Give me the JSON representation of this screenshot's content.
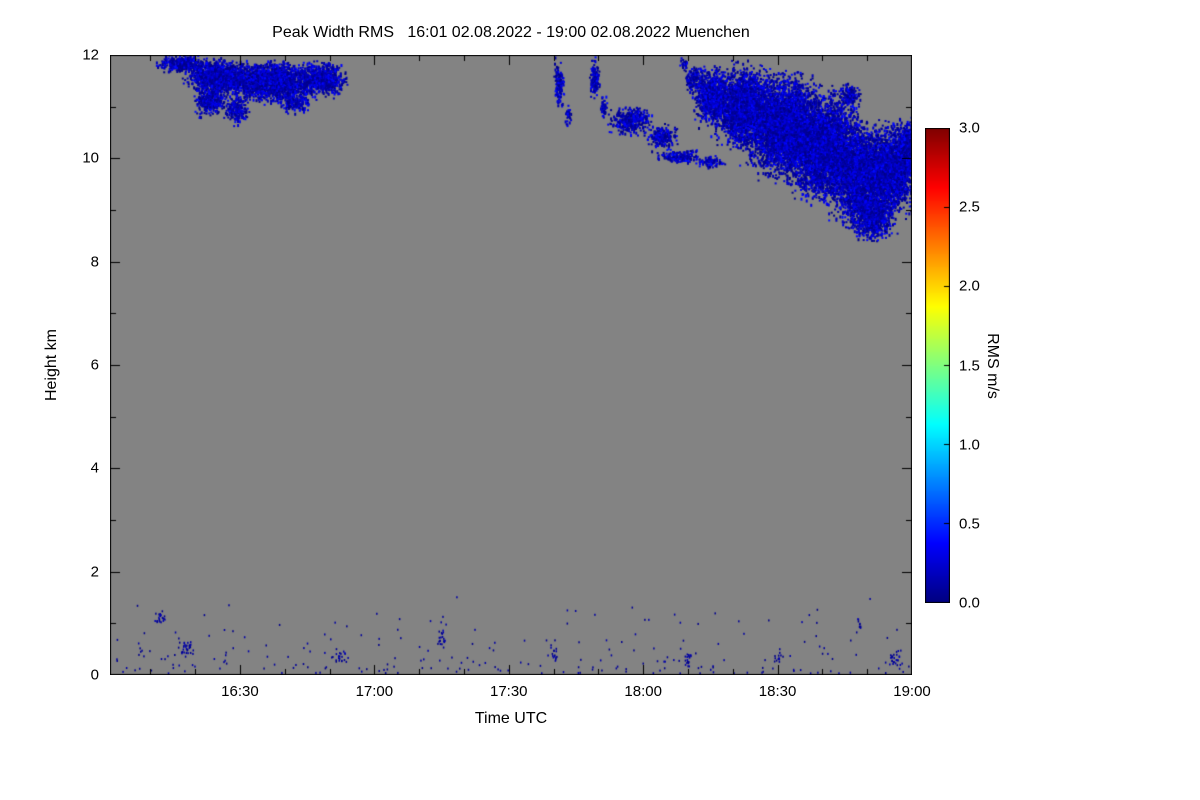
{
  "chart_data": {
    "type": "heatmap",
    "title": "Peak Width RMS   16:01 02.08.2022 - 19:00 02.08.2022 Muenchen",
    "xlabel": "Time UTC",
    "ylabel": "Height km",
    "x_range_minutes": [
      961,
      1140
    ],
    "x_ticks": [
      {
        "minute": 990,
        "label": "16:30"
      },
      {
        "minute": 1020,
        "label": "17:00"
      },
      {
        "minute": 1050,
        "label": "17:30"
      },
      {
        "minute": 1080,
        "label": "18:00"
      },
      {
        "minute": 1110,
        "label": "18:30"
      },
      {
        "minute": 1140,
        "label": "19:00"
      }
    ],
    "x_minor_ticks": [
      970,
      980,
      1000,
      1010,
      1030,
      1040,
      1060,
      1070,
      1090,
      1100,
      1120,
      1130
    ],
    "ylim": [
      0,
      12
    ],
    "y_ticks": [
      {
        "value": 0,
        "label": "0"
      },
      {
        "value": 2,
        "label": "2"
      },
      {
        "value": 4,
        "label": "4"
      },
      {
        "value": 6,
        "label": "6"
      },
      {
        "value": 8,
        "label": "8"
      },
      {
        "value": 10,
        "label": "10"
      },
      {
        "value": 12,
        "label": "12"
      }
    ],
    "y_minor_ticks": [
      1,
      3,
      5,
      7,
      9,
      11
    ],
    "background_color": "#838383",
    "value_range": [
      0.02,
      0.42
    ],
    "colorbar": {
      "label": "RMS m/s",
      "range": [
        0.0,
        3.0
      ],
      "colormap": "jet",
      "ticks": [
        {
          "value": 0.0,
          "label": "0.0"
        },
        {
          "value": 0.5,
          "label": "0.5"
        },
        {
          "value": 1.0,
          "label": "1.0"
        },
        {
          "value": 1.5,
          "label": "1.5"
        },
        {
          "value": 2.0,
          "label": "2.0"
        },
        {
          "value": 2.5,
          "label": "2.5"
        },
        {
          "value": 3.0,
          "label": "3.0"
        }
      ]
    },
    "clouds": [
      {
        "name": "cirrus-patch-left",
        "blobs": [
          {
            "t": 977,
            "h": 11.85,
            "rt": 6,
            "rh": 0.18,
            "d": 0.85
          },
          {
            "t": 985,
            "h": 11.6,
            "rt": 8,
            "rh": 0.38,
            "d": 0.9
          },
          {
            "t": 997,
            "h": 11.5,
            "rt": 11,
            "rh": 0.42,
            "d": 0.92
          },
          {
            "t": 1008,
            "h": 11.55,
            "rt": 6,
            "rh": 0.35,
            "d": 0.85
          },
          {
            "t": 983,
            "h": 11.15,
            "rt": 4,
            "rh": 0.35,
            "d": 0.6
          },
          {
            "t": 989,
            "h": 10.95,
            "rt": 3,
            "rh": 0.28,
            "d": 0.55
          },
          {
            "t": 1002,
            "h": 11.1,
            "rt": 4,
            "rh": 0.22,
            "d": 0.5
          }
        ]
      },
      {
        "name": "thin-streaks-mid",
        "blobs": [
          {
            "t": 1061,
            "h": 11.45,
            "rt": 1.2,
            "rh": 0.5,
            "d": 0.55
          },
          {
            "t": 1063,
            "h": 10.85,
            "rt": 0.8,
            "rh": 0.22,
            "d": 0.45
          },
          {
            "t": 1069,
            "h": 11.55,
            "rt": 1.3,
            "rh": 0.42,
            "d": 0.6
          },
          {
            "t": 1071,
            "h": 11.0,
            "rt": 0.9,
            "rh": 0.28,
            "d": 0.45
          }
        ]
      },
      {
        "name": "descending-band",
        "blobs": [
          {
            "t": 1077,
            "h": 10.75,
            "rt": 5,
            "rh": 0.28,
            "d": 0.6
          },
          {
            "t": 1084,
            "h": 10.45,
            "rt": 4,
            "rh": 0.24,
            "d": 0.55
          },
          {
            "t": 1088,
            "h": 10.05,
            "rt": 6,
            "rh": 0.14,
            "d": 0.5
          },
          {
            "t": 1095,
            "h": 9.95,
            "rt": 4,
            "rh": 0.12,
            "d": 0.45
          }
        ]
      },
      {
        "name": "cirrus-shield-right",
        "blobs": [
          {
            "t": 1089,
            "h": 11.85,
            "rt": 1,
            "rh": 0.15,
            "d": 0.4
          },
          {
            "t": 1091,
            "h": 11.55,
            "rt": 2,
            "rh": 0.3,
            "d": 0.55
          },
          {
            "t": 1095,
            "h": 11.2,
            "rt": 4,
            "rh": 0.6,
            "d": 0.85
          },
          {
            "t": 1102,
            "h": 11.0,
            "rt": 7,
            "rh": 0.85,
            "d": 0.92
          },
          {
            "t": 1111,
            "h": 10.65,
            "rt": 9,
            "rh": 1.05,
            "d": 0.95
          },
          {
            "t": 1120,
            "h": 10.25,
            "rt": 9,
            "rh": 1.1,
            "d": 0.95
          },
          {
            "t": 1126,
            "h": 11.25,
            "rt": 2.5,
            "rh": 0.25,
            "d": 0.5
          },
          {
            "t": 1129,
            "h": 9.65,
            "rt": 8,
            "rh": 1.05,
            "d": 0.95
          },
          {
            "t": 1131,
            "h": 8.85,
            "rt": 5,
            "rh": 0.45,
            "d": 0.7
          },
          {
            "t": 1136,
            "h": 9.8,
            "rt": 5,
            "rh": 0.9,
            "d": 0.92
          },
          {
            "t": 1139,
            "h": 10.2,
            "rt": 3,
            "rh": 0.55,
            "d": 0.85
          }
        ]
      }
    ],
    "surface": {
      "scatter_count": 230,
      "h_max": 1.5,
      "clusters": [
        {
          "t": 972,
          "h": 1.1,
          "rt": 1.5,
          "rh": 0.25,
          "n": 22
        },
        {
          "t": 978,
          "h": 0.55,
          "rt": 2.2,
          "rh": 0.3,
          "n": 30
        },
        {
          "t": 1012,
          "h": 0.35,
          "rt": 2,
          "rh": 0.2,
          "n": 18
        },
        {
          "t": 1035,
          "h": 0.75,
          "rt": 1.5,
          "rh": 0.3,
          "n": 20
        },
        {
          "t": 1060,
          "h": 0.45,
          "rt": 1.2,
          "rh": 0.25,
          "n": 14
        },
        {
          "t": 1090,
          "h": 0.3,
          "rt": 2,
          "rh": 0.2,
          "n": 18
        },
        {
          "t": 1110,
          "h": 0.35,
          "rt": 1.5,
          "rh": 0.2,
          "n": 14
        },
        {
          "t": 1128,
          "h": 1.0,
          "rt": 1,
          "rh": 0.2,
          "n": 10
        },
        {
          "t": 1136,
          "h": 0.35,
          "rt": 2.5,
          "rh": 0.25,
          "n": 24
        }
      ]
    }
  }
}
